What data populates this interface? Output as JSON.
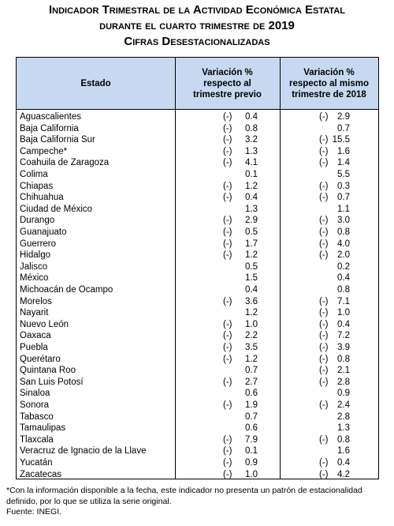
{
  "header": {
    "title_lines": [
      "Indicador Trimestral de la Actividad Económica Estatal",
      "durante el cuarto trimestre de 2019",
      "Cifras Desestacionalizadas"
    ]
  },
  "table": {
    "columns": [
      "Estado",
      "Variación % respecto al trimestre previo",
      "Variación % respecto al mismo trimestre de 2018"
    ],
    "rows": [
      [
        "Aguascalientes",
        "(-)",
        "0.4",
        "(-)",
        "2.9"
      ],
      [
        "Baja California",
        "(-)",
        "0.8",
        null,
        "0.7"
      ],
      [
        "Baja California Sur",
        "(-)",
        "3.2",
        "(-)",
        "15.5"
      ],
      [
        "Campeche*",
        "(-)",
        "1.3",
        "(-)",
        "1.6"
      ],
      [
        "Coahuila de Zaragoza",
        "(-)",
        "4.1",
        "(-)",
        "1.4"
      ],
      [
        "Colima",
        null,
        "0.1",
        null,
        "5.5"
      ],
      [
        "Chiapas",
        "(-)",
        "1.2",
        "(-)",
        "0.3"
      ],
      [
        "Chihuahua",
        "(-)",
        "0.4",
        "(-)",
        "0.7"
      ],
      [
        "Ciudad de México",
        null,
        "1.3",
        null,
        "1.1"
      ],
      [
        "Durango",
        "(-)",
        "2.9",
        "(-)",
        "3.0"
      ],
      [
        "Guanajuato",
        "(-)",
        "0.5",
        "(-)",
        "0.8"
      ],
      [
        "Guerrero",
        "(-)",
        "1.7",
        "(-)",
        "4.0"
      ],
      [
        "Hidalgo",
        "(-)",
        "1.2",
        "(-)",
        "2.0"
      ],
      [
        "Jalisco",
        null,
        "0.5",
        null,
        "0.2"
      ],
      [
        "México",
        null,
        "1.5",
        null,
        "0.4"
      ],
      [
        "Michoacán de Ocampo",
        null,
        "0.4",
        null,
        "0.8"
      ],
      [
        "Morelos",
        "(-)",
        "3.6",
        "(-)",
        "7.1"
      ],
      [
        "Nayarit",
        null,
        "1.2",
        "(-)",
        "1.0"
      ],
      [
        "Nuevo León",
        "(-)",
        "1.0",
        "(-)",
        "0.4"
      ],
      [
        "Oaxaca",
        "(-)",
        "2.2",
        "(-)",
        "7.2"
      ],
      [
        "Puebla",
        "(-)",
        "3.5",
        "(-)",
        "3.9"
      ],
      [
        "Querétaro",
        "(-)",
        "1.2",
        "(-)",
        "0.8"
      ],
      [
        "Quintana Roo",
        null,
        "0.7",
        "(-)",
        "2.1"
      ],
      [
        "San Luis Potosí",
        "(-)",
        "2.7",
        "(-)",
        "2.8"
      ],
      [
        "Sinaloa",
        null,
        "0.6",
        null,
        "0.9"
      ],
      [
        "Sonora",
        "(-)",
        "1.9",
        "(-)",
        "2.4"
      ],
      [
        "Tabasco",
        null,
        "0.7",
        null,
        "2.8"
      ],
      [
        "Tamaulipas",
        null,
        "0.6",
        null,
        "1.3"
      ],
      [
        "Tlaxcala",
        "(-)",
        "7.9",
        "(-)",
        "0.8"
      ],
      [
        "Veracruz de Ignacio de la Llave",
        "(-)",
        "0.1",
        null,
        "1.6"
      ],
      [
        "Yucatán",
        "(-)",
        "0.9",
        "(-)",
        "0.4"
      ],
      [
        "Zacatecas",
        "(-)",
        "1.0",
        "(-)",
        "4.2"
      ]
    ]
  },
  "footer": {
    "note": "*Con la información disponible a la fecha, este indicador no presenta un patrón de estacionalidad definido, por lo que se utiliza la serie original.",
    "source": "Fuente: INEGI."
  }
}
